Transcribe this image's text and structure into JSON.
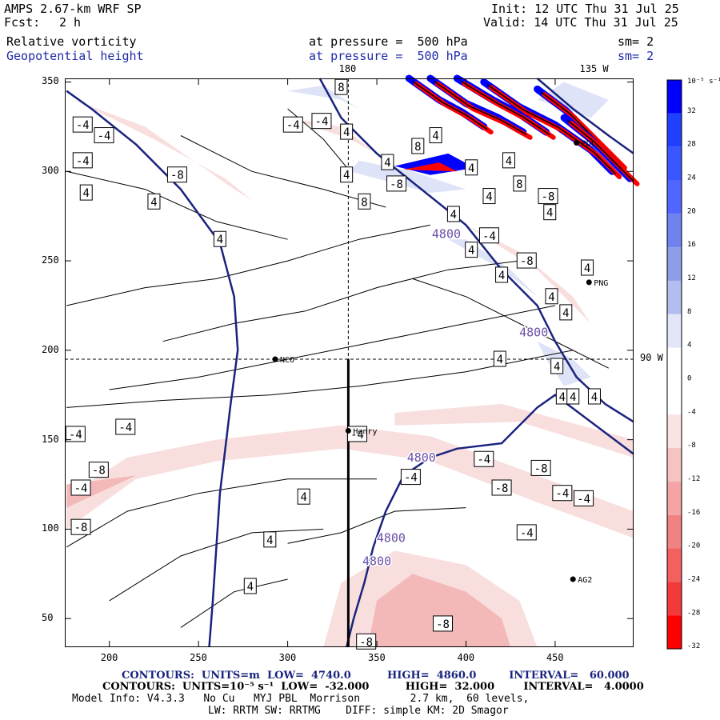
{
  "header": {
    "model": "AMPS 2.67-km WRF SP",
    "fcst_label": "Fcst:",
    "fcst_value": "2 h",
    "init": "Init: 12 UTC Thu 31 Jul 25",
    "valid": "Valid: 14 UTC Thu 31 Jul 25",
    "field1_name": "Relative vorticity",
    "field1_level": "at pressure =  500 hPa",
    "field1_sm": "sm= 2",
    "field2_name": "Geopotential height",
    "field2_level": "at pressure =  500 hPa",
    "field2_sm": "sm= 2"
  },
  "colors": {
    "positive_strong": "#0000ff",
    "positive_light": "#dfe3f7",
    "negative_strong": "#ff0000",
    "negative_light": "#f9dede",
    "height_contour": "#1a237e"
  },
  "map": {
    "lon_labels": [
      {
        "text": "180",
        "x": 335
      },
      {
        "text": "135 W",
        "x": 470
      }
    ],
    "lat_label": {
      "text": "90 W"
    },
    "x_ticks": [
      200,
      250,
      300,
      350,
      400,
      450
    ],
    "y_ticks": [
      50,
      100,
      150,
      200,
      250,
      300,
      350
    ],
    "x_range": [
      175,
      494
    ],
    "y_range": [
      34,
      352
    ],
    "stations": [
      {
        "name": "NCO",
        "x": 293,
        "y": 195
      },
      {
        "name": "Henry",
        "x": 334,
        "y": 155
      },
      {
        "name": "AG2",
        "x": 460,
        "y": 72
      },
      {
        "name": "PNG",
        "x": 469,
        "y": 238
      },
      {
        "name": "PDL",
        "x": 462,
        "y": 316
      }
    ],
    "vort_labels": [
      {
        "text": "-4",
        "x": 185,
        "y": 326
      },
      {
        "text": "-4",
        "x": 197,
        "y": 320
      },
      {
        "text": "-4",
        "x": 185,
        "y": 306
      },
      {
        "text": "-8",
        "x": 238,
        "y": 298
      },
      {
        "text": "-4",
        "x": 303,
        "y": 326
      },
      {
        "text": "-4",
        "x": 319,
        "y": 328
      },
      {
        "text": "4",
        "x": 333,
        "y": 322
      },
      {
        "text": "8",
        "x": 330,
        "y": 347
      },
      {
        "text": "4",
        "x": 333,
        "y": 298
      },
      {
        "text": "4",
        "x": 187,
        "y": 288
      },
      {
        "text": "4",
        "x": 225,
        "y": 283
      },
      {
        "text": "4",
        "x": 262,
        "y": 262
      },
      {
        "text": "8",
        "x": 343,
        "y": 283
      },
      {
        "text": "-8",
        "x": 361,
        "y": 293
      },
      {
        "text": "8",
        "x": 373,
        "y": 314
      },
      {
        "text": "4",
        "x": 356,
        "y": 305
      },
      {
        "text": "4",
        "x": 383,
        "y": 320
      },
      {
        "text": "4",
        "x": 403,
        "y": 302
      },
      {
        "text": "4",
        "x": 424,
        "y": 306
      },
      {
        "text": "8",
        "x": 430,
        "y": 293
      },
      {
        "text": "4",
        "x": 413,
        "y": 286
      },
      {
        "text": "4",
        "x": 393,
        "y": 276
      },
      {
        "text": "-8",
        "x": 446,
        "y": 286
      },
      {
        "text": "4",
        "x": 447,
        "y": 277
      },
      {
        "text": "-4",
        "x": 413,
        "y": 264
      },
      {
        "text": "4",
        "x": 403,
        "y": 256
      },
      {
        "text": "-8",
        "x": 434,
        "y": 250
      },
      {
        "text": "4",
        "x": 420,
        "y": 242
      },
      {
        "text": "4",
        "x": 468,
        "y": 246
      },
      {
        "text": "4",
        "x": 448,
        "y": 230
      },
      {
        "text": "4",
        "x": 456,
        "y": 221
      },
      {
        "text": "4",
        "x": 419,
        "y": 195
      },
      {
        "text": "4",
        "x": 451,
        "y": 191
      },
      {
        "text": "4",
        "x": 454,
        "y": 174
      },
      {
        "text": "4",
        "x": 460,
        "y": 174
      },
      {
        "text": "4",
        "x": 472,
        "y": 174
      },
      {
        "text": "-4",
        "x": 209,
        "y": 157
      },
      {
        "text": "-4",
        "x": 181,
        "y": 153
      },
      {
        "text": "-4",
        "x": 339,
        "y": 153
      },
      {
        "text": "-8",
        "x": 194,
        "y": 133
      },
      {
        "text": "-4",
        "x": 184,
        "y": 123
      },
      {
        "text": "-8",
        "x": 184,
        "y": 101
      },
      {
        "text": "-4",
        "x": 369,
        "y": 129
      },
      {
        "text": "-4",
        "x": 410,
        "y": 139
      },
      {
        "text": "-8",
        "x": 420,
        "y": 123
      },
      {
        "text": "-8",
        "x": 442,
        "y": 134
      },
      {
        "text": "-4",
        "x": 454,
        "y": 120
      },
      {
        "text": "-4",
        "x": 466,
        "y": 117
      },
      {
        "text": "-4",
        "x": 434,
        "y": 98
      },
      {
        "text": "4",
        "x": 309,
        "y": 118
      },
      {
        "text": "4",
        "x": 290,
        "y": 94
      },
      {
        "text": "4",
        "x": 279,
        "y": 68
      },
      {
        "text": "-8",
        "x": 387,
        "y": 47
      },
      {
        "text": "-8",
        "x": 344,
        "y": 37
      }
    ],
    "height_labels": [
      {
        "text": "4800",
        "x": 389,
        "y": 265
      },
      {
        "text": "4800",
        "x": 438,
        "y": 210
      },
      {
        "text": "4800",
        "x": 375,
        "y": 140
      },
      {
        "text": "4800",
        "x": 358,
        "y": 95
      },
      {
        "text": "4800",
        "x": 350,
        "y": 82
      }
    ]
  },
  "colorbar": {
    "unit": "10⁻⁵ s⁻¹",
    "levels": [
      "32",
      "28",
      "24",
      "20",
      "16",
      "12",
      "8",
      "4",
      "0",
      "-4",
      "-8",
      "-12",
      "-16",
      "-20",
      "-24",
      "-28",
      "-32"
    ],
    "swatches": [
      "#0000ff",
      "#2040ff",
      "#3a56ff",
      "#5066ff",
      "#6f82ee",
      "#8e9de8",
      "#b3bdf0",
      "#e2e6f8",
      "#ffffff",
      "#ffffff",
      "#fbe3e3",
      "#f6c3c3",
      "#f4a4a4",
      "#f18282",
      "#f26060",
      "#f33a3a",
      "#ff0000"
    ]
  },
  "footer": {
    "line1": "CONTOURS:  UNITS=m  LOW=  4740.0          HIGH=  4860.0         INTERVAL=   60.000",
    "line2": "CONTOURS:  UNITS=10⁻⁵ s⁻¹  LOW=  -32.000          HIGH=  32.000        INTERVAL=   4.0000",
    "line3": "Model Info: V4.3.3   No Cu   MYJ PBL  Morrison        2.7 km,  60 levels,",
    "line4": "LW: RRTM SW: RRTMG    DIFF: simple KM: 2D Smagor"
  }
}
